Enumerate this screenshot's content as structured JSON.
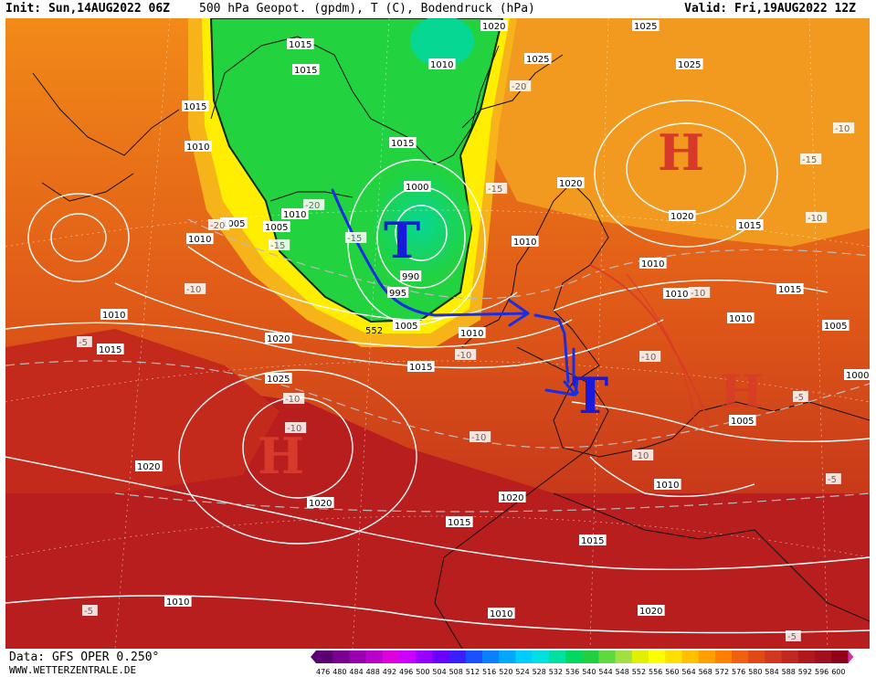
{
  "header": {
    "init": "Init: Sun,14AUG2022 06Z",
    "title": "500 hPa Geopot. (gpdm), T (C), Bodendruck (hPa)",
    "valid": "Valid: Fri,19AUG2022 12Z"
  },
  "footer": {
    "source": "Data: GFS OPER 0.250°",
    "site": "WWW.WETTERZENTRALE.DE"
  },
  "pressure_systems": [
    {
      "label": "T",
      "kind": "low"
    },
    {
      "label": "T",
      "kind": "low"
    },
    {
      "label": "H",
      "kind": "high"
    },
    {
      "label": "H",
      "kind": "high"
    },
    {
      "label": "H",
      "kind": "high"
    }
  ],
  "isobar_labels": [
    "1015",
    "1015",
    "1015",
    "1010",
    "1010",
    "1005",
    "1010",
    "1005",
    "1010",
    "1015",
    "1000",
    "990",
    "995",
    "1005",
    "1010",
    "1015",
    "1020",
    "1010",
    "1020",
    "1025",
    "1025",
    "1025",
    "1020",
    "1015",
    "1010",
    "1010",
    "1015",
    "1005",
    "1010",
    "1000",
    "1005",
    "1020",
    "1025",
    "1020",
    "1015",
    "1020",
    "1015",
    "1010",
    "1010",
    "1020",
    "1010",
    "1020",
    "1015",
    "1010"
  ],
  "temp_labels": [
    "-20",
    "-15",
    "-10",
    "-10",
    "-5",
    "-15",
    "-20",
    "-15",
    "-20",
    "-10",
    "-15",
    "-10",
    "-10",
    "-10",
    "-5",
    "-10",
    "-10",
    "-10",
    "-5",
    "-10",
    "-5",
    "-5"
  ],
  "contour_label": "552",
  "colors": {
    "low_marker": "#1a1adb",
    "high_marker": "#d83a2a",
    "track": "#1a2ee0",
    "green_region": "#22d23f",
    "orange_region": "#f07c14",
    "red_region": "#c0281e"
  },
  "scale": {
    "values": [
      "476",
      "480",
      "484",
      "488",
      "492",
      "496",
      "500",
      "504",
      "508",
      "512",
      "516",
      "520",
      "524",
      "528",
      "532",
      "536",
      "540",
      "544",
      "548",
      "552",
      "556",
      "560",
      "564",
      "568",
      "572",
      "576",
      "580",
      "584",
      "588",
      "592",
      "596",
      "600"
    ],
    "colors": [
      "#5a0070",
      "#7a0090",
      "#9a00b0",
      "#bb00cc",
      "#dd00e0",
      "#cc00ff",
      "#9a00ff",
      "#6a00ff",
      "#3a20ff",
      "#1a50ff",
      "#0a80ff",
      "#00a8ff",
      "#00ccff",
      "#00e0e0",
      "#00e0a0",
      "#00d860",
      "#20d040",
      "#60d840",
      "#a0e040",
      "#e0f000",
      "#ffff00",
      "#ffe000",
      "#ffc000",
      "#ffa000",
      "#ff8000",
      "#f06010",
      "#e04818",
      "#d03820",
      "#c02820",
      "#b01820",
      "#a01020",
      "#900018"
    ]
  }
}
